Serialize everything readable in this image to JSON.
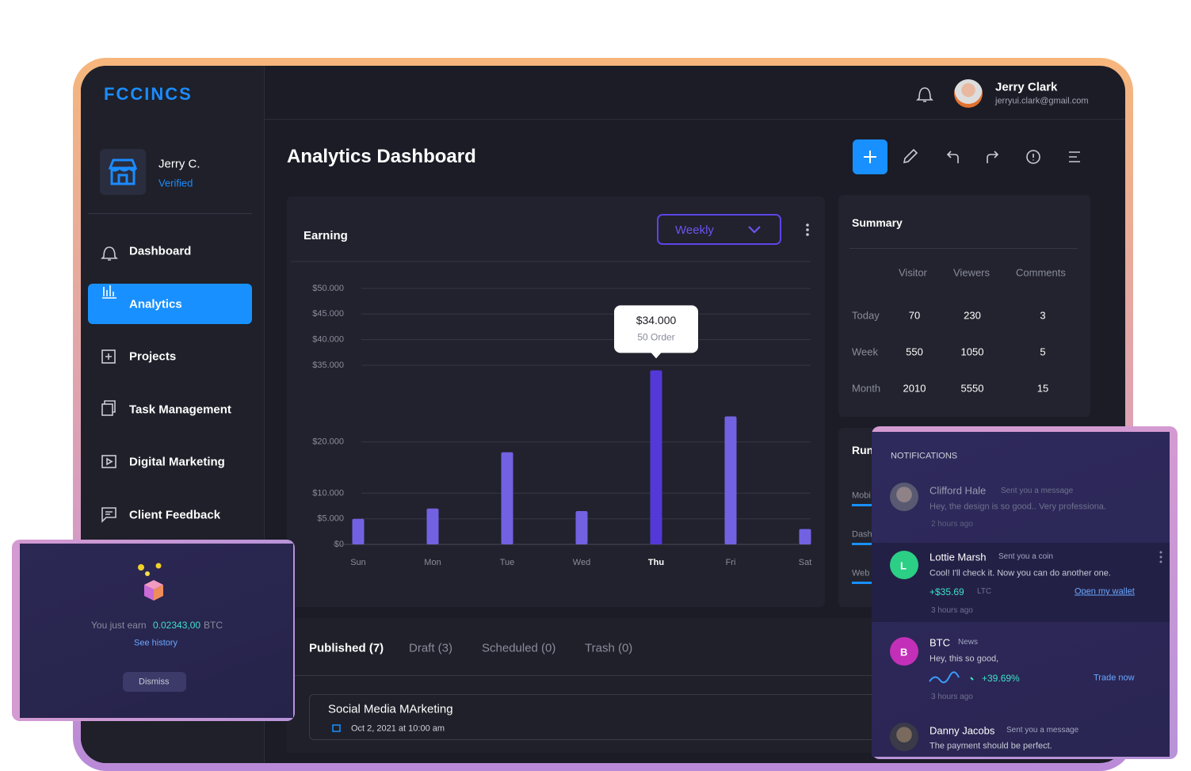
{
  "brand": "FCCINCS",
  "header": {
    "user_name": "Jerry Clark",
    "user_email": "jerryui.clark@gmail.com"
  },
  "profile": {
    "name": "Jerry C.",
    "status": "Verified"
  },
  "nav": [
    "Dashboard",
    "Analytics",
    "Projects",
    "Task Management",
    "Digital Marketing",
    "Client Feedback"
  ],
  "page_title": "Analytics Dashboard",
  "chart_data": {
    "type": "bar",
    "title": "Earning",
    "period": "Weekly",
    "categories": [
      "Sun",
      "Mon",
      "Tue",
      "Wed",
      "Thu",
      "Fri",
      "Sat"
    ],
    "values": [
      5000,
      7000,
      18000,
      6500,
      34000,
      25000,
      3000
    ],
    "value_labels": [
      null,
      null,
      null,
      null,
      "$34.000",
      null,
      null
    ],
    "tooltip_note": "50 Order",
    "color": "#7262e2",
    "highlight_color": "#5438d8",
    "ylim": [
      0,
      50000
    ],
    "yticks": [
      {
        "value": 0,
        "label": "$0"
      },
      {
        "value": 5000,
        "label": "$5.000"
      },
      {
        "value": 10000,
        "label": "$10.000"
      },
      {
        "value": 20000,
        "label": "$20.000"
      },
      {
        "value": 35000,
        "label": "$35.000"
      },
      {
        "value": 40000,
        "label": "$40.000"
      },
      {
        "value": 45000,
        "label": "$45.000"
      },
      {
        "value": 50000,
        "label": "$50.000"
      }
    ],
    "grid": true
  },
  "summary": {
    "title": "Summary",
    "columns": [
      "Visitor",
      "Viewers",
      "Comments"
    ],
    "rows": [
      {
        "label": "Today",
        "values": [
          70,
          230,
          3
        ]
      },
      {
        "label": "Week",
        "values": [
          550,
          1050,
          5
        ]
      },
      {
        "label": "Month",
        "values": [
          2010,
          5550,
          15
        ]
      }
    ]
  },
  "running": {
    "title": "Run",
    "items": [
      "Mobi",
      "Dash",
      "Web"
    ]
  },
  "tabs": [
    "Published (7)",
    "Draft (3)",
    "Scheduled (0)",
    "Trash (0)"
  ],
  "post": {
    "title": "Social Media MArketing",
    "date": "Oct 2, 2021 at 10:00 am"
  },
  "earn_widget": {
    "text": "You just earn",
    "amount": "0.02343,00",
    "unit": "BTC",
    "link": "See history",
    "button": "Dismiss"
  },
  "notifications": {
    "title": "NOTIFICATIONS",
    "items": [
      {
        "name": "Clifford Hale",
        "action": "Sent you a message",
        "message": "Hey, the design is so good.. Very professiona.",
        "time": "2 hours ago"
      },
      {
        "avatar": "L",
        "name": "Lottie Marsh",
        "action": "Sent you a coin",
        "message": "Cool! I'll check it. Now you can do another one.",
        "amount": "+$35.69",
        "currency": "LTC",
        "link": "Open my wallet",
        "time": "3 hours ago"
      },
      {
        "avatar": "B",
        "name": "BTC",
        "action": "News",
        "message": "Hey, this so good,",
        "change": "+39.69%",
        "link": "Trade now",
        "time": "3 hours ago"
      },
      {
        "name": "Danny Jacobs",
        "action": "Sent you a message",
        "message": "The payment should be perfect."
      }
    ]
  }
}
